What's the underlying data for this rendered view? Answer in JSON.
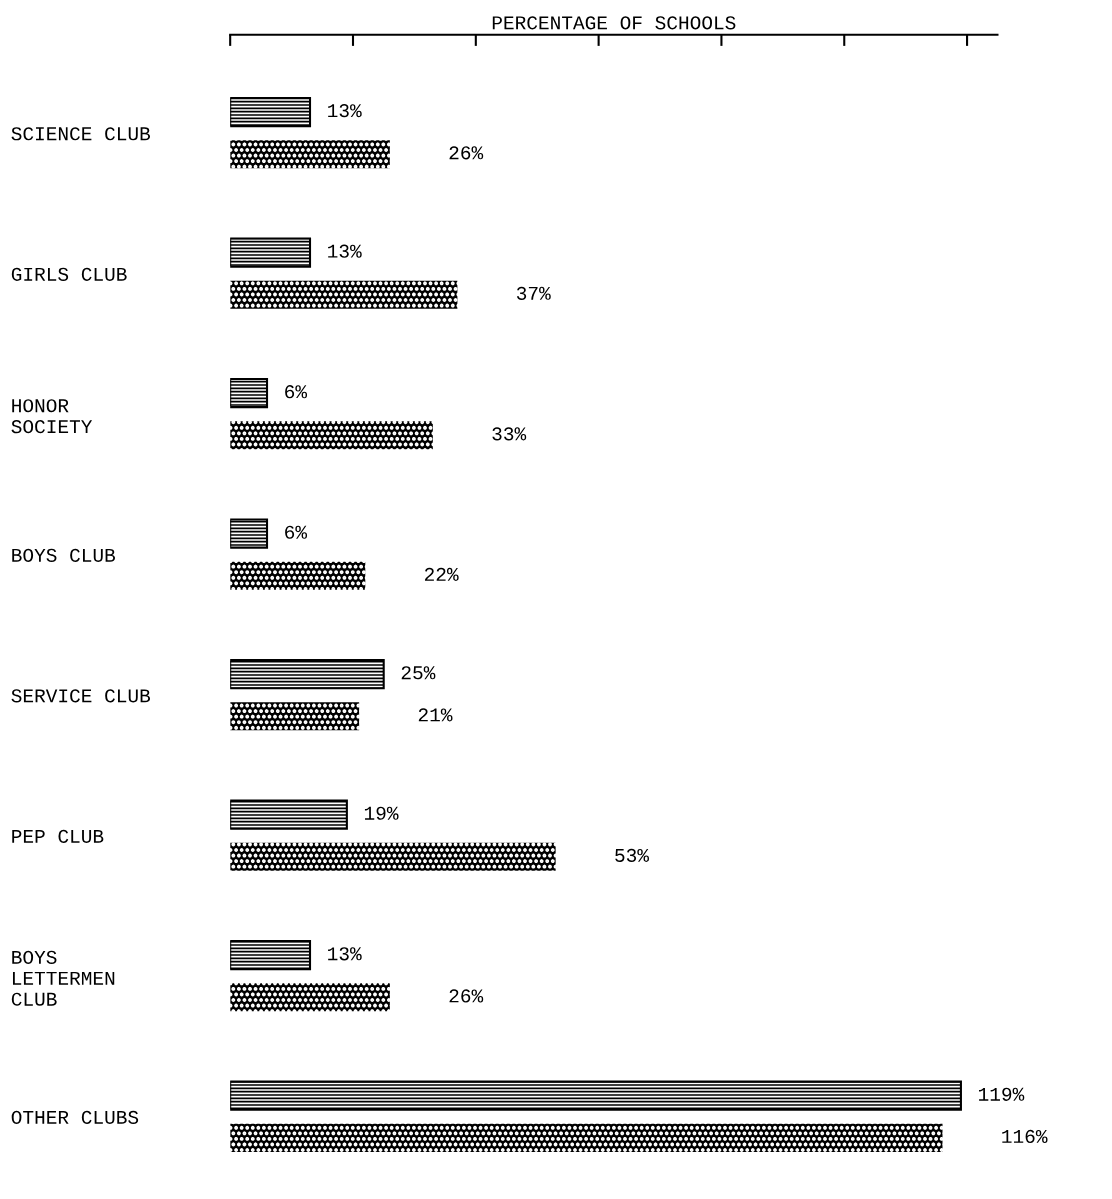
{
  "chart_data": {
    "type": "bar",
    "orientation": "horizontal",
    "xlabel": "PERCENTAGE OF SCHOOLS",
    "categories": [
      "SCIENCE CLUB",
      "GIRLS CLUB",
      "HONOR\nSOCIETY",
      "BOYS CLUB",
      "SERVICE CLUB",
      "PEP CLUB",
      "BOYS\nLETTERMEN\nCLUB",
      "OTHER CLUBS"
    ],
    "series": [
      {
        "color": "#000000",
        "values": [
          13,
          13,
          6,
          6,
          25,
          19,
          13,
          119
        ],
        "value_labels": [
          "13%",
          "13%",
          "6%",
          "6%",
          "25%",
          "19%",
          "13%",
          "119%"
        ]
      },
      {
        "color": "#000000",
        "values": [
          26,
          37,
          33,
          22,
          21,
          53,
          26,
          116
        ],
        "value_labels": [
          "26%",
          "37%",
          "33%",
          "22%",
          "21%",
          "53%",
          "26%",
          "116%"
        ]
      }
    ],
    "tick_labels": "y",
    "grid": false,
    "legend": false
  }
}
